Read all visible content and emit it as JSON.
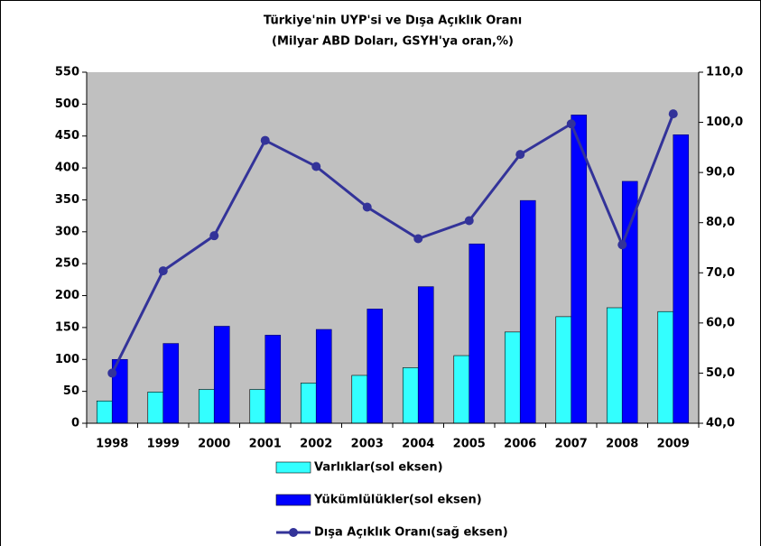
{
  "chart_data": {
    "type": "bar_line",
    "title": "Türkiye'nin UYP'si ve Dışa Açıklık Oranı",
    "subtitle": "(Milyar ABD Doları, GSYH'ya oran,%)",
    "categories": [
      "1998",
      "1999",
      "2000",
      "2001",
      "2002",
      "2003",
      "2004",
      "2005",
      "2006",
      "2007",
      "2008",
      "2009"
    ],
    "series": [
      {
        "name": "Varlıklar(sol eksen)",
        "type": "bar",
        "color": "#33ffff",
        "values": [
          35,
          49,
          53,
          53,
          63,
          75,
          87,
          106,
          143,
          167,
          181,
          175
        ]
      },
      {
        "name": "Yükümlülükler(sol eksen)",
        "type": "bar",
        "color": "#0000ff",
        "values": [
          100,
          125,
          152,
          138,
          147,
          179,
          214,
          281,
          349,
          483,
          379,
          452
        ]
      },
      {
        "name": "Dışa Açıklık Oranı(sağ eksen)",
        "type": "line",
        "axis": "y2",
        "color": "#333399",
        "values": [
          50.0,
          70.4,
          77.4,
          96.4,
          91.2,
          83.1,
          76.8,
          80.4,
          93.6,
          99.7,
          75.6,
          101.7
        ]
      }
    ],
    "ylim": [
      0,
      550
    ],
    "yticks": [
      0,
      50,
      100,
      150,
      200,
      250,
      300,
      350,
      400,
      450,
      500,
      550
    ],
    "y2lim": [
      40,
      110
    ],
    "y2ticks": [
      {
        "value": 40,
        "label": "40,0"
      },
      {
        "value": 50,
        "label": "50,0"
      },
      {
        "value": 60,
        "label": "60,0"
      },
      {
        "value": 70,
        "label": "70,0"
      },
      {
        "value": 80,
        "label": "80,0"
      },
      {
        "value": 90,
        "label": "90,0"
      },
      {
        "value": 100,
        "label": "100,0"
      },
      {
        "value": 110,
        "label": "110,0"
      }
    ],
    "legend": "bottom",
    "grid": false
  }
}
